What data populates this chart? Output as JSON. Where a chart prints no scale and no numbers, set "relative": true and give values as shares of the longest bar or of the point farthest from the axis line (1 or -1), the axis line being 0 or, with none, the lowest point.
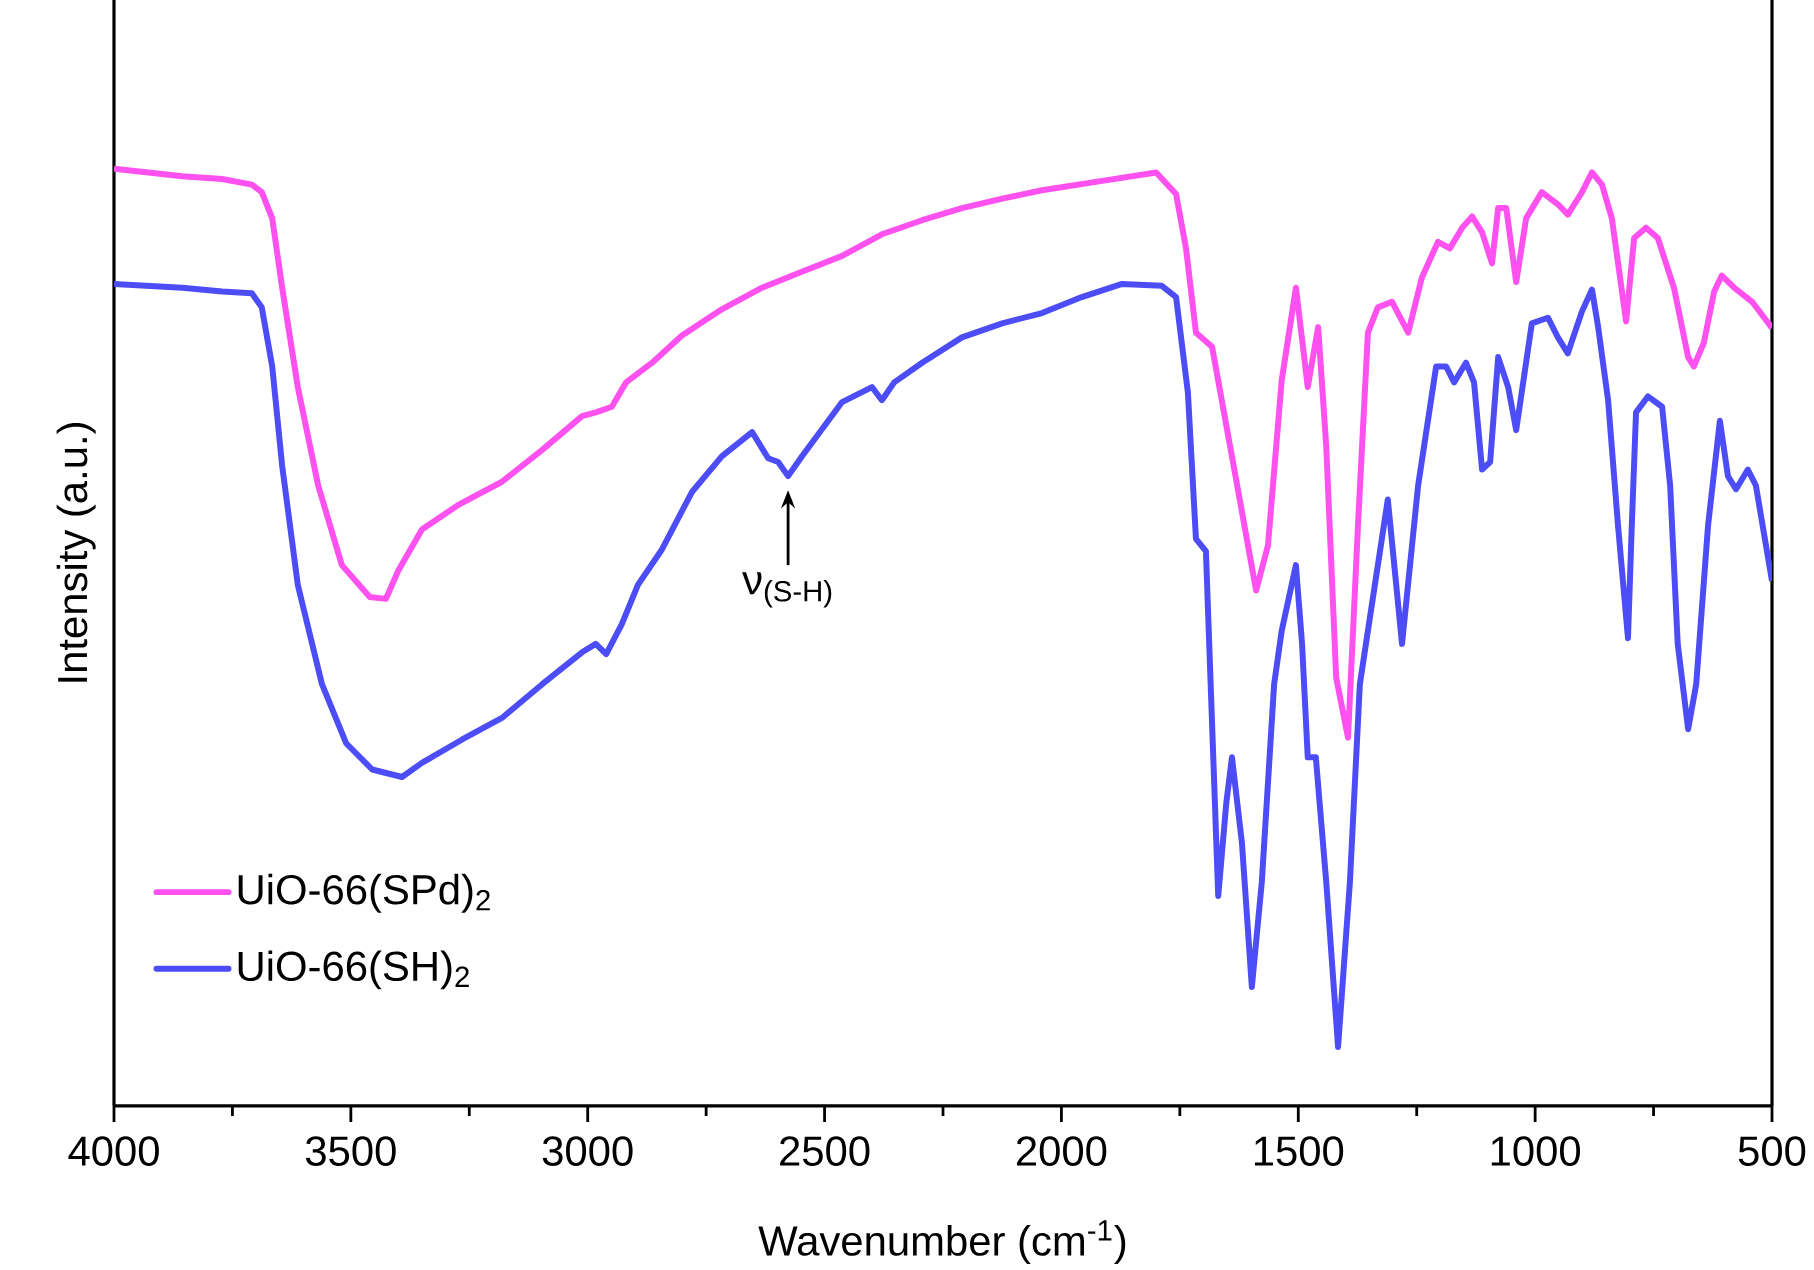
{
  "chart_data": {
    "type": "line",
    "relative": true,
    "xlabel": "Wavenumber (cm$^{-1}$)",
    "ylabel": "Intensity (a.u.)",
    "legend": "bottom left",
    "xlim": [
      4000,
      500
    ],
    "xticks": [
      4000,
      {
        "value": 3750,
        "label": null
      },
      3500,
      {
        "value": 3250,
        "label": null
      },
      3000,
      {
        "value": 2750,
        "label": null
      },
      2500,
      {
        "value": 2250,
        "label": null
      },
      2000,
      {
        "value": 1750,
        "label": null
      },
      1500,
      {
        "value": 1250,
        "label": null
      },
      1000,
      {
        "value": 750,
        "label": null
      },
      500
    ],
    "annotations": [
      {
        "text": "ν$_{(S-H)}$",
        "x": 2577,
        "y": 0.672
      }
    ],
    "series": [
      {
        "name": "UiO-66(SPd)$_{2}$",
        "color": "#ff50f0",
        "x": [
          4000,
          3856,
          3772,
          3709,
          3688,
          3666,
          3645,
          3612,
          3569,
          3519,
          3460,
          3426,
          3400,
          3350,
          3274,
          3181,
          3096,
          3012,
          2983,
          2949,
          2919,
          2864,
          2801,
          2717,
          2632,
          2548,
          2463,
          2379,
          2294,
          2210,
          2125,
          2041,
          1914,
          1800,
          1758,
          1737,
          1716,
          1682,
          1640,
          1589,
          1564,
          1535,
          1505,
          1480,
          1458,
          1441,
          1420,
          1395,
          1374,
          1353,
          1332,
          1302,
          1268,
          1239,
          1205,
          1180,
          1154,
          1133,
          1112,
          1091,
          1078,
          1061,
          1040,
          1019,
          986,
          952,
          931,
          901,
          880,
          859,
          838,
          808,
          791,
          766,
          741,
          707,
          677,
          665,
          644,
          622,
          606,
          580,
          542,
          500
        ],
        "values": [
          1,
          0.992,
          0.989,
          0.983,
          0.975,
          0.947,
          0.873,
          0.767,
          0.662,
          0.577,
          0.543,
          0.541,
          0.571,
          0.615,
          0.641,
          0.666,
          0.7,
          0.736,
          0.74,
          0.746,
          0.772,
          0.793,
          0.822,
          0.85,
          0.873,
          0.89,
          0.907,
          0.93,
          0.945,
          0.958,
          0.968,
          0.977,
          0.987,
          0.996,
          0.973,
          0.915,
          0.825,
          0.81,
          0.693,
          0.55,
          0.598,
          0.774,
          0.873,
          0.767,
          0.831,
          0.704,
          0.457,
          0.393,
          0.619,
          0.825,
          0.852,
          0.858,
          0.825,
          0.884,
          0.922,
          0.915,
          0.937,
          0.949,
          0.932,
          0.899,
          0.958,
          0.958,
          0.879,
          0.947,
          0.975,
          0.962,
          0.951,
          0.975,
          0.996,
          0.983,
          0.947,
          0.837,
          0.926,
          0.937,
          0.926,
          0.873,
          0.799,
          0.789,
          0.814,
          0.869,
          0.886,
          0.873,
          0.858,
          0.83
        ]
      },
      {
        "name": "UiO-66(SH)$_{2}$",
        "color": "#4d4df7",
        "x": [
          4000,
          3856,
          3772,
          3709,
          3688,
          3666,
          3645,
          3612,
          3561,
          3510,
          3455,
          3392,
          3350,
          3265,
          3181,
          3096,
          3012,
          2983,
          2961,
          2928,
          2894,
          2843,
          2780,
          2717,
          2653,
          2619,
          2598,
          2577,
          2548,
          2463,
          2400,
          2379,
          2353,
          2294,
          2210,
          2125,
          2041,
          1957,
          1872,
          1788,
          1758,
          1733,
          1716,
          1695,
          1669,
          1652,
          1640,
          1619,
          1598,
          1577,
          1551,
          1535,
          1505,
          1492,
          1480,
          1463,
          1441,
          1416,
          1391,
          1370,
          1353,
          1311,
          1281,
          1247,
          1209,
          1188,
          1171,
          1146,
          1129,
          1112,
          1095,
          1078,
          1057,
          1040,
          1007,
          973,
          952,
          931,
          901,
          880,
          867,
          846,
          825,
          804,
          796,
          787,
          762,
          732,
          715,
          699,
          677,
          660,
          635,
          610,
          593,
          576,
          551,
          534,
          500
        ],
        "values": [
          0.877,
          0.873,
          0.869,
          0.867,
          0.852,
          0.789,
          0.683,
          0.556,
          0.45,
          0.387,
          0.359,
          0.351,
          0.366,
          0.391,
          0.414,
          0.45,
          0.484,
          0.493,
          0.482,
          0.514,
          0.556,
          0.594,
          0.655,
          0.693,
          0.719,
          0.691,
          0.687,
          0.672,
          0.693,
          0.751,
          0.767,
          0.753,
          0.772,
          0.793,
          0.82,
          0.835,
          0.846,
          0.863,
          0.877,
          0.875,
          0.863,
          0.761,
          0.605,
          0.592,
          0.224,
          0.323,
          0.372,
          0.281,
          0.127,
          0.239,
          0.45,
          0.507,
          0.577,
          0.493,
          0.372,
          0.372,
          0.239,
          0.063,
          0.239,
          0.45,
          0.507,
          0.647,
          0.493,
          0.662,
          0.789,
          0.789,
          0.772,
          0.793,
          0.772,
          0.679,
          0.687,
          0.799,
          0.767,
          0.721,
          0.835,
          0.841,
          0.82,
          0.803,
          0.848,
          0.871,
          0.831,
          0.753,
          0.619,
          0.499,
          0.619,
          0.74,
          0.757,
          0.746,
          0.662,
          0.493,
          0.402,
          0.45,
          0.619,
          0.731,
          0.672,
          0.658,
          0.679,
          0.662,
          0.56
        ]
      }
    ]
  }
}
